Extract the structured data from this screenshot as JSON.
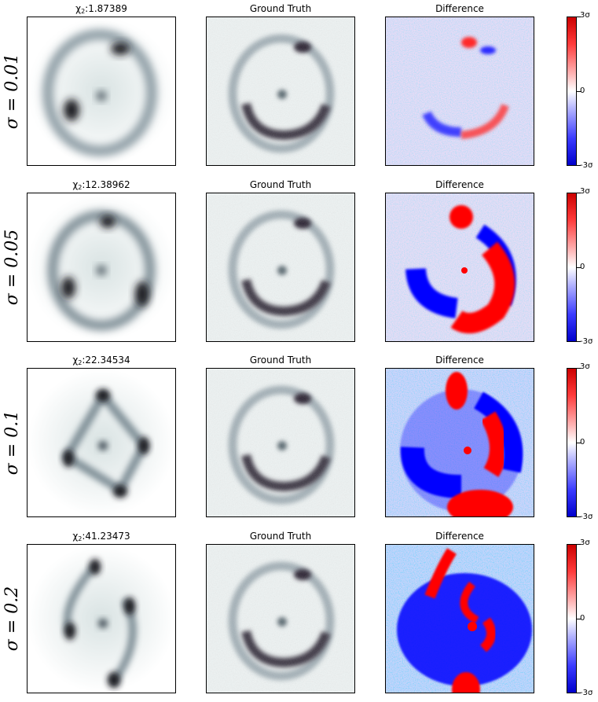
{
  "rows": [
    {
      "sigma_label": "σ = 0.01",
      "chi_prefix": "χ",
      "chi_sub": "2",
      "chi_value": ":1.87389",
      "mid_title": "Ground Truth",
      "right_title": "Difference"
    },
    {
      "sigma_label": "σ = 0.05",
      "chi_prefix": "χ",
      "chi_sub": "2",
      "chi_value": ":12.38962",
      "mid_title": "Ground Truth",
      "right_title": "Difference"
    },
    {
      "sigma_label": "σ = 0.1",
      "chi_prefix": "χ",
      "chi_sub": "2",
      "chi_value": ":22.34534",
      "mid_title": "Ground Truth",
      "right_title": "Difference"
    },
    {
      "sigma_label": "σ = 0.2",
      "chi_prefix": "χ",
      "chi_sub": "2",
      "chi_value": ":41.23473",
      "mid_title": "Ground Truth",
      "right_title": "Difference"
    }
  ],
  "colorbar": {
    "top_label": "3σ",
    "mid_label": "0",
    "bottom_label": "-3σ"
  },
  "colors": {
    "positive": "#ff0000",
    "negative": "#0000ff",
    "neutral": "#ffffff",
    "lens_dark": "#2a2433",
    "lens_bg": "#eef3f3"
  }
}
